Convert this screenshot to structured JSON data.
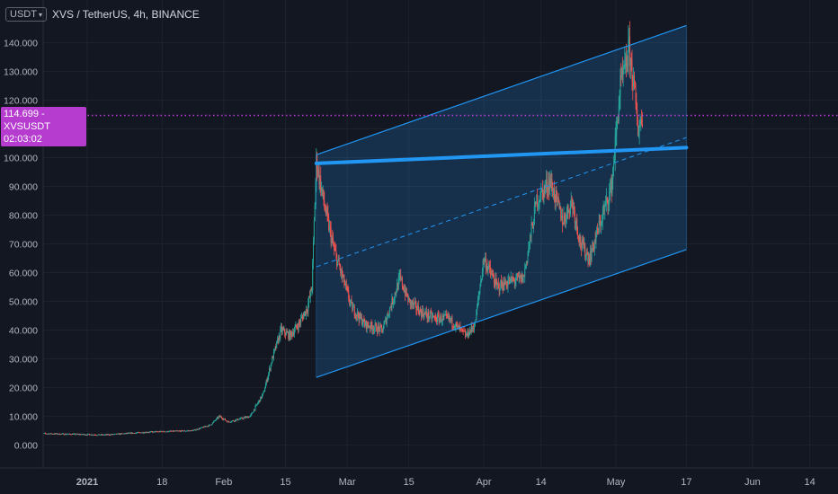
{
  "header": {
    "currency_badge": "USDT",
    "title": "XVS / TetherUS, 4h, BINANCE"
  },
  "price_tag": {
    "price": "114.699",
    "symbol": "XVSUSDT",
    "countdown": "02:03:02"
  },
  "colors": {
    "background": "#131722",
    "grid": "#1e222d",
    "up_candle": "#26a69a",
    "down_candle": "#ef5350",
    "channel": "#2196f3",
    "price_line": "#c239dd"
  },
  "chart_data": {
    "type": "candlestick",
    "symbol": "XVS / TetherUS",
    "interval": "4h",
    "exchange": "BINANCE",
    "ylim": [
      -3,
      148
    ],
    "y_ticks": [
      "0.000",
      "10.000",
      "20.000",
      "30.000",
      "40.000",
      "50.000",
      "60.000",
      "70.000",
      "80.000",
      "90.000",
      "100.000",
      "110.000",
      "120.000",
      "130.000",
      "140.000"
    ],
    "x_ticks": [
      "2021",
      "18",
      "Feb",
      "15",
      "Mar",
      "15",
      "Apr",
      "14",
      "May",
      "17",
      "Jun",
      "14"
    ],
    "x_tick_dates": [
      "2021-01-01",
      "2021-01-18",
      "2021-02-01",
      "2021-02-15",
      "2021-03-01",
      "2021-03-15",
      "2021-04-01",
      "2021-04-14",
      "2021-05-01",
      "2021-05-17",
      "2021-06-01",
      "2021-06-14"
    ],
    "current_price": 114.699,
    "price_trend_daily": [
      [
        "2020-12-21",
        4
      ],
      [
        "2021-01-05",
        3.5
      ],
      [
        "2021-01-15",
        4.5
      ],
      [
        "2021-01-25",
        5
      ],
      [
        "2021-01-29",
        7
      ],
      [
        "2021-01-31",
        10
      ],
      [
        "2021-02-02",
        8
      ],
      [
        "2021-02-07",
        10
      ],
      [
        "2021-02-10",
        18
      ],
      [
        "2021-02-12",
        30
      ],
      [
        "2021-02-14",
        40
      ],
      [
        "2021-02-16",
        38
      ],
      [
        "2021-02-18",
        42
      ],
      [
        "2021-02-20",
        48
      ],
      [
        "2021-02-21",
        55
      ],
      [
        "2021-02-22",
        99
      ],
      [
        "2021-02-24",
        82
      ],
      [
        "2021-02-26",
        68
      ],
      [
        "2021-02-28",
        58
      ],
      [
        "2021-03-02",
        48
      ],
      [
        "2021-03-05",
        42
      ],
      [
        "2021-03-09",
        40
      ],
      [
        "2021-03-13",
        58
      ],
      [
        "2021-03-15",
        50
      ],
      [
        "2021-03-18",
        46
      ],
      [
        "2021-03-21",
        44
      ],
      [
        "2021-03-24",
        44
      ],
      [
        "2021-03-28",
        38
      ],
      [
        "2021-03-30",
        42
      ],
      [
        "2021-04-01",
        65
      ],
      [
        "2021-04-04",
        55
      ],
      [
        "2021-04-07",
        57
      ],
      [
        "2021-04-10",
        58
      ],
      [
        "2021-04-13",
        85
      ],
      [
        "2021-04-16",
        92
      ],
      [
        "2021-04-19",
        78
      ],
      [
        "2021-04-21",
        85
      ],
      [
        "2021-04-23",
        70
      ],
      [
        "2021-04-25",
        65
      ],
      [
        "2021-04-27",
        75
      ],
      [
        "2021-04-30",
        90
      ],
      [
        "2021-05-02",
        125
      ],
      [
        "2021-05-03",
        130
      ],
      [
        "2021-05-04",
        138
      ],
      [
        "2021-05-05",
        126
      ],
      [
        "2021-05-06",
        110
      ],
      [
        "2021-05-07",
        114.7
      ]
    ],
    "channel": {
      "upper": [
        [
          "2021-02-22",
          101
        ],
        [
          "2021-05-17",
          146
        ]
      ],
      "lower": [
        [
          "2021-02-22",
          23.5
        ],
        [
          "2021-05-17",
          68
        ]
      ],
      "median": [
        [
          "2021-02-22",
          62
        ],
        [
          "2021-05-17",
          107
        ]
      ],
      "resistance": [
        [
          "2021-02-22",
          98
        ],
        [
          "2021-05-17",
          103.5
        ]
      ]
    }
  }
}
